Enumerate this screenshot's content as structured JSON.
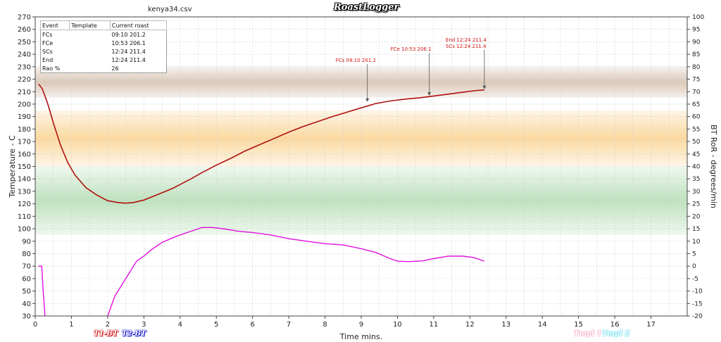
{
  "window": {
    "file_name": "kenya34.csv",
    "logo": "RoastLogger"
  },
  "toolbar": {
    "t1_label": "T1-BT",
    "t2_label": "T2-BT",
    "tmpl1_label": "Tmpl 1",
    "tmpl2_label": "Tmpl 2"
  },
  "events_table": {
    "headers": [
      "Event",
      "Template",
      "Current roast"
    ],
    "rows": [
      [
        "FCs",
        "",
        "09:10 201.2"
      ],
      [
        "FCe",
        "",
        "10:53 206.1"
      ],
      [
        "SCs",
        "",
        "12:24 211.4"
      ],
      [
        "End",
        "",
        "12:24 211.4"
      ],
      [
        "Rao %",
        "",
        "26"
      ]
    ]
  },
  "colors": {
    "bt": "#b01010",
    "ror": "#e010e0",
    "annotation": "#d01010",
    "band_brown": "#dcc9b9",
    "band_orange": "#fbd9a0",
    "band_green": "#bfe2bf"
  },
  "chart_data": {
    "type": "line",
    "xlabel": "Time mins.",
    "ylabel": "Temperature - C",
    "y2label": "BT RoR - degrees/min",
    "xlim": [
      0,
      18
    ],
    "ylim": [
      30,
      270
    ],
    "y2lim": [
      -20,
      100
    ],
    "x_ticks": [
      0,
      1,
      2,
      3,
      4,
      5,
      6,
      7,
      8,
      9,
      10,
      11,
      12,
      13,
      14,
      15,
      16,
      17
    ],
    "y_ticks": [
      30,
      40,
      50,
      60,
      70,
      80,
      90,
      100,
      110,
      120,
      130,
      140,
      150,
      160,
      170,
      180,
      190,
      200,
      210,
      220,
      230,
      240,
      250,
      260,
      270
    ],
    "y2_ticks": [
      -20,
      -15,
      -10,
      -5,
      0,
      5,
      10,
      15,
      20,
      25,
      30,
      35,
      40,
      45,
      50,
      55,
      60,
      65,
      70,
      75,
      80,
      85,
      90,
      95,
      100
    ],
    "grid": true,
    "bands": [
      {
        "name": "brown",
        "from": 205,
        "to": 230
      },
      {
        "name": "orange",
        "from": 150,
        "to": 195
      },
      {
        "name": "green",
        "from": 95,
        "to": 150
      }
    ],
    "series": [
      {
        "axis": "left",
        "x": [
          0.1,
          0.2,
          0.35,
          0.5,
          0.7,
          0.9,
          1.1,
          1.4,
          1.7,
          2.0,
          2.3,
          2.5,
          2.7,
          3.0,
          3.3,
          3.6,
          3.8,
          4.0,
          4.3,
          4.6,
          5.0,
          5.4,
          5.8,
          6.2,
          6.6,
          7.0,
          7.4,
          7.8,
          8.2,
          8.6,
          9.0,
          9.4,
          9.8,
          10.2,
          10.6,
          11.0,
          11.4,
          11.8,
          12.2,
          12.4
        ],
        "y": [
          216,
          212,
          200,
          185,
          167,
          153,
          143,
          133,
          127,
          122.5,
          121,
          120.5,
          121,
          123,
          126.5,
          130,
          132.5,
          135.5,
          140,
          145,
          151,
          156.5,
          162.5,
          167.5,
          172.5,
          177.5,
          182,
          186,
          190,
          193.5,
          197,
          200.5,
          202.5,
          204,
          205,
          206.5,
          208,
          209.5,
          211,
          211.4
        ]
      },
      {
        "axis": "right",
        "segments": [
          {
            "x": [
              0.08,
              0.18,
              0.22,
              0.27
            ],
            "y": [
              0,
              0,
              -10,
              -20
            ]
          },
          {
            "x": [
              2.0,
              2.2,
              2.5,
              2.8,
              3.0,
              3.2,
              3.5,
              3.9,
              4.3,
              4.6,
              4.9,
              5.2,
              5.6,
              6.0,
              6.5,
              7.0,
              7.5,
              8.0,
              8.5,
              9.0,
              9.4,
              9.8,
              10.0,
              10.3,
              10.7,
              11.0,
              11.4,
              11.8,
              12.1,
              12.4
            ],
            "y": [
              -20,
              -12,
              -5,
              2,
              4,
              6.5,
              9.5,
              12,
              14,
              15.5,
              15.5,
              15,
              14,
              13.5,
              12.5,
              11,
              10,
              9,
              8.5,
              7,
              5.5,
              3,
              2,
              1.8,
              2.1,
              3,
              4,
              4,
              3.5,
              2
            ]
          }
        ]
      }
    ],
    "annotations": [
      {
        "label": "FCs 09:10 201.2",
        "x": 9.17,
        "y": 201.2
      },
      {
        "label": "FCe 10:53 206.1",
        "x": 10.88,
        "y": 206.1
      },
      {
        "label": "SCs 12:24 211.4",
        "x": 12.4,
        "y": 211.4
      },
      {
        "label": "End 12:24 211.4",
        "x": 12.4,
        "y": 211.4
      }
    ]
  }
}
